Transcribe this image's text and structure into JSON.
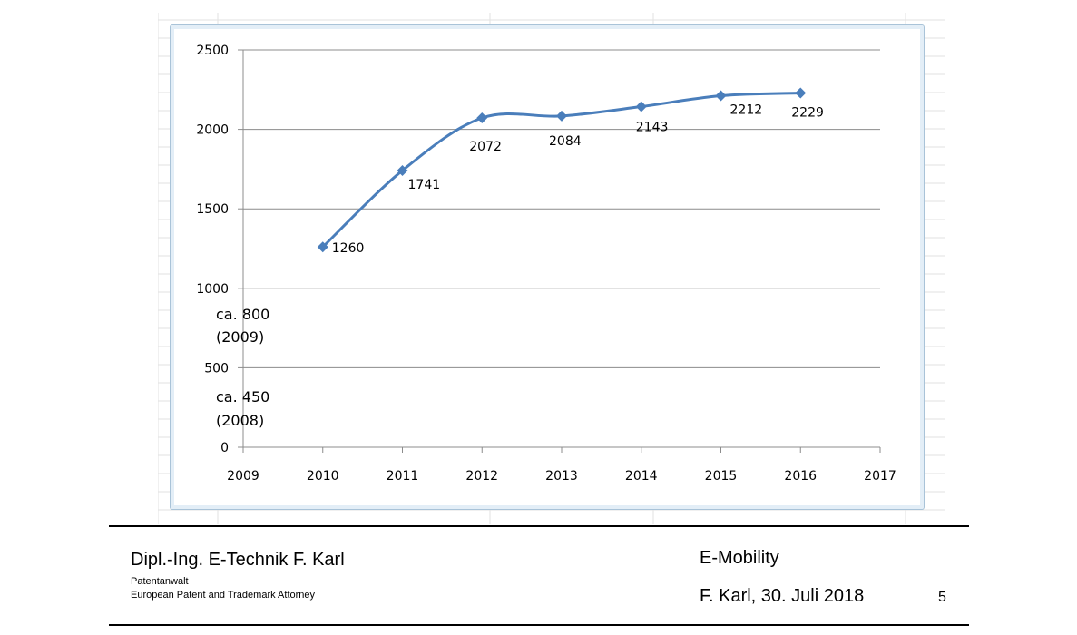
{
  "chart_data": {
    "type": "line",
    "x": [
      2010,
      2011,
      2012,
      2013,
      2014,
      2015,
      2016
    ],
    "values": [
      1260,
      1741,
      2072,
      2084,
      2143,
      2212,
      2229
    ],
    "data_labels": [
      "1260",
      "1741",
      "2072",
      "2084",
      "2143",
      "2212",
      "2229"
    ],
    "x_ticks": [
      "2009",
      "2010",
      "2011",
      "2012",
      "2013",
      "2014",
      "2015",
      "2016",
      "2017"
    ],
    "y_ticks": [
      "0",
      "500",
      "1000",
      "1500",
      "2000",
      "2500"
    ],
    "xlim": [
      2009,
      2017
    ],
    "ylim": [
      0,
      2500
    ],
    "grid": true,
    "series_color": "#4a7ebb",
    "annotations": [
      {
        "line1": "ca. 800",
        "line2": "(2009)"
      },
      {
        "line1": "ca. 450",
        "line2": "(2008)"
      }
    ],
    "title": "",
    "xlabel": "",
    "ylabel": ""
  },
  "footer": {
    "author": "Dipl.-Ing. E-Technik F. Karl",
    "role": "Patentanwalt",
    "role2": "European Patent and Trademark Attorney",
    "topic": "E-Mobility",
    "date": "F. Karl, 30. Juli 2018",
    "page": "5"
  }
}
